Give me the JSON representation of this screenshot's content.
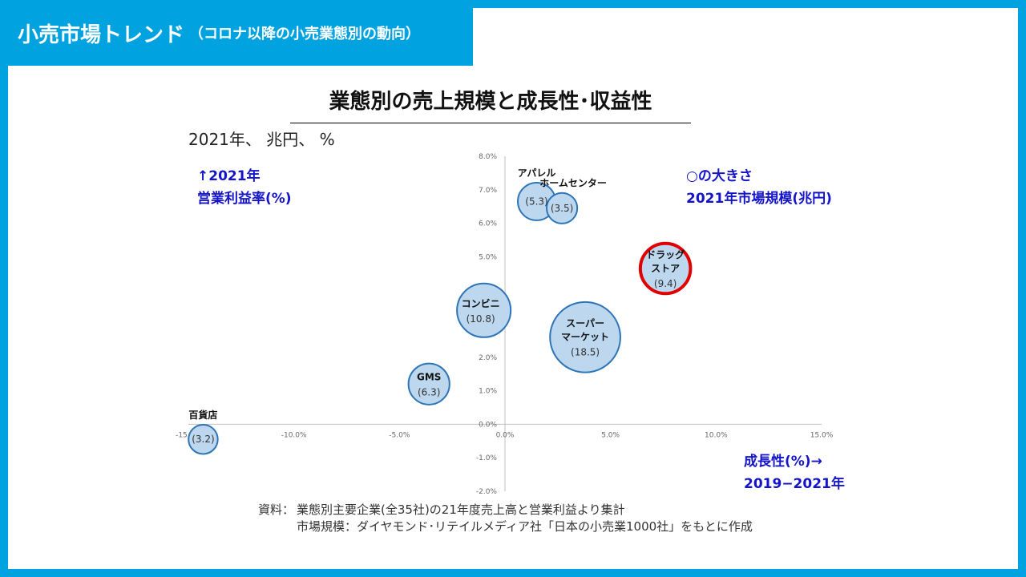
{
  "header": {
    "title": "小売市場トレンド",
    "subtitle": "（コロナ以降の小売業態別の動向）"
  },
  "chart_heading": "業態別の売上規模と成長性･収益性",
  "unit_label": "2021年、 兆円、 %",
  "y_note": [
    "↑2021年",
    "営業利益率(%)"
  ],
  "size_note": [
    "○の大きさ",
    "2021年市場規模(兆円)"
  ],
  "x_note": [
    "成長性(%)→",
    "2019−2021年"
  ],
  "source": {
    "label1": "資料：",
    "line1": "業態別主要企業(全35社)の21年度売上高と営業利益より集計",
    "label2": "",
    "line2": "市場規模：ダイヤモンド･リテイルメディア社「日本の小売業1000社」をもとに作成"
  },
  "colors": {
    "frame": "#00a2e0",
    "bubble_fill": "#bdd7ee",
    "bubble_stroke": "#2e75b6",
    "highlight_stroke": "#e00000",
    "note_text": "#1414c8"
  },
  "chart_data": {
    "type": "scatter",
    "xlim": [
      -15,
      15
    ],
    "ylim": [
      -2,
      8
    ],
    "x_ticks": [
      "-15.0%",
      "-10.0%",
      "-5.0%",
      "0.0%",
      "5.0%",
      "10.0%",
      "15.0%"
    ],
    "y_ticks": [
      "-2.0%",
      "-1.0%",
      "0.0%",
      "1.0%",
      "2.0%",
      "3.0%",
      "4.0%",
      "5.0%",
      "6.0%",
      "7.0%",
      "8.0%"
    ],
    "points": [
      {
        "name": "アパレル",
        "label_lines": [
          "アパレル"
        ],
        "x": 1.5,
        "y": 6.65,
        "size": 5.3,
        "value_label": "(5.3)",
        "highlight": false
      },
      {
        "name": "ホームセンター",
        "label_lines": [
          "ホームセンター"
        ],
        "x": 2.7,
        "y": 6.45,
        "size": 3.5,
        "value_label": "(3.5)",
        "highlight": false
      },
      {
        "name": "ドラッグストア",
        "label_lines": [
          "ドラッグ",
          "ストア"
        ],
        "x": 7.6,
        "y": 4.65,
        "size": 9.4,
        "value_label": "(9.4)",
        "highlight": true
      },
      {
        "name": "コンビニ",
        "label_lines": [
          "コンビニ"
        ],
        "x": -1.0,
        "y": 3.4,
        "size": 10.8,
        "value_label": "(10.8)",
        "highlight": false
      },
      {
        "name": "スーパーマーケット",
        "label_lines": [
          "スーパー",
          "マーケット"
        ],
        "x": 3.8,
        "y": 2.6,
        "size": 18.5,
        "value_label": "(18.5)",
        "highlight": false
      },
      {
        "name": "GMS",
        "label_lines": [
          "GMS"
        ],
        "x": -3.6,
        "y": 1.2,
        "size": 6.3,
        "value_label": "(6.3)",
        "highlight": false
      },
      {
        "name": "百貨店",
        "label_lines": [
          "百貨店"
        ],
        "x": -14.3,
        "y": -0.45,
        "size": 3.2,
        "value_label": "(3.2)",
        "highlight": false
      }
    ]
  }
}
